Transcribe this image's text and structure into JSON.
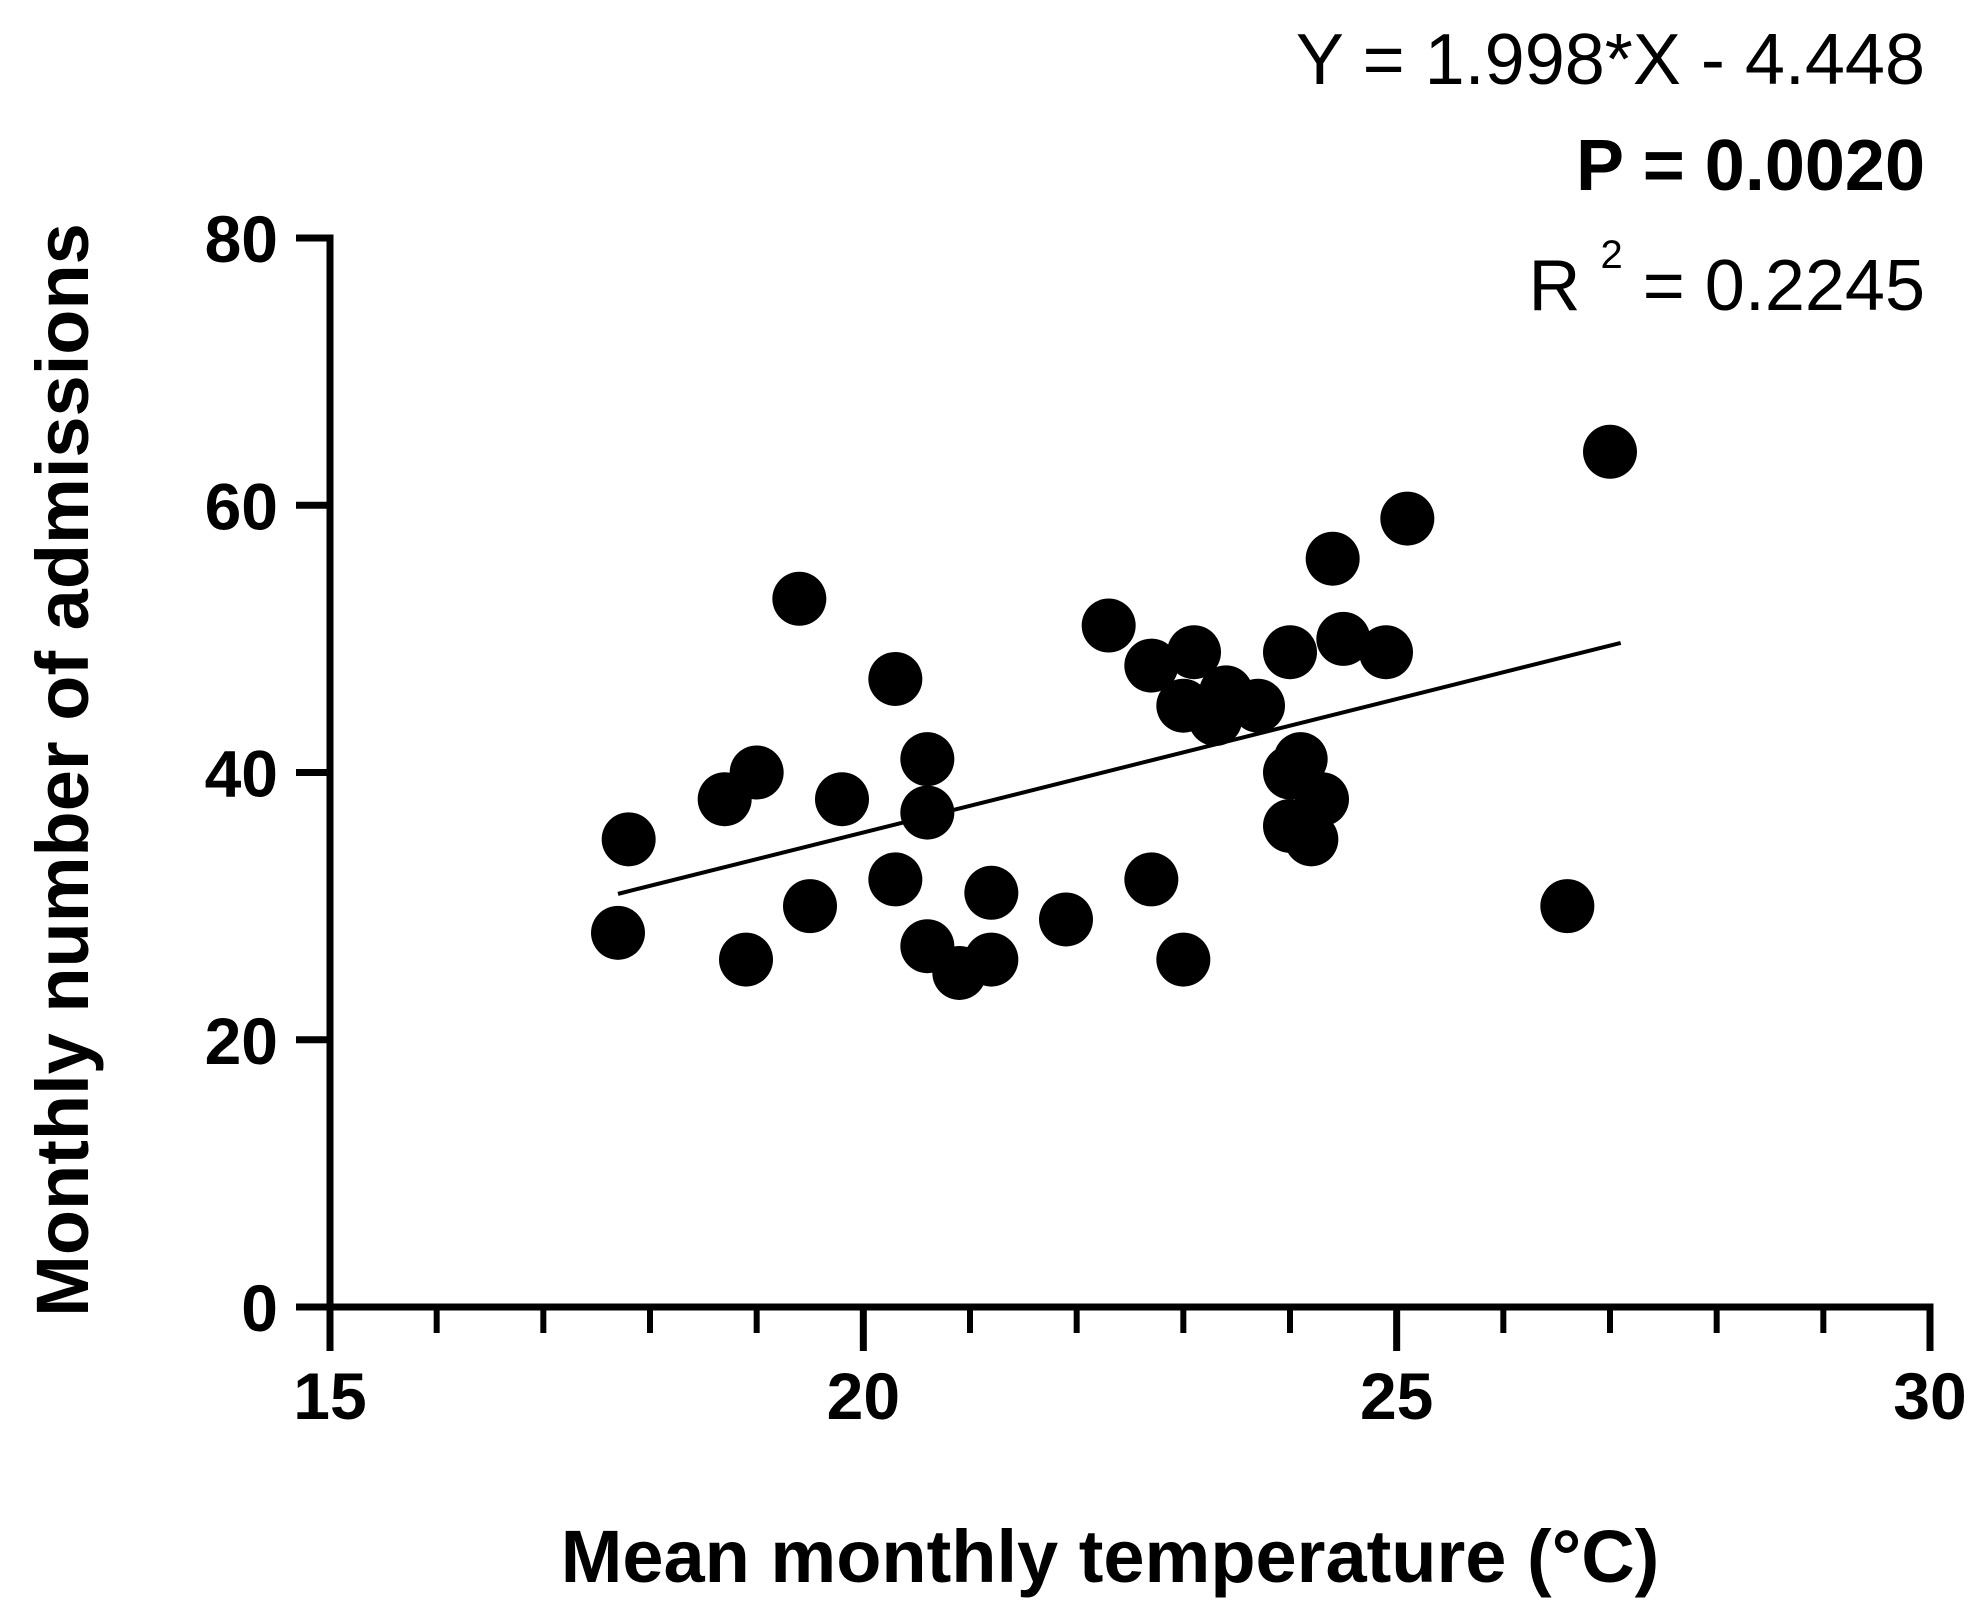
{
  "colors": {
    "background": "#ffffff",
    "ink": "#000000"
  },
  "chart_data": {
    "type": "scatter",
    "title": "",
    "xlabel": "Mean monthly temperature (°C)",
    "ylabel": "Monthly number of admissions",
    "xlim": [
      15,
      30
    ],
    "ylim": [
      0,
      80
    ],
    "x_major_ticks": [
      15,
      20,
      25,
      30
    ],
    "x_major_tick_labels": [
      "15",
      "20",
      "25",
      "30"
    ],
    "x_minor_step": 1,
    "y_major_ticks": [
      0,
      20,
      40,
      60,
      80
    ],
    "y_major_tick_labels": [
      "0",
      "20",
      "40",
      "60",
      "80"
    ],
    "grid": false,
    "series": [
      {
        "name": "Admissions",
        "marker": "filled-circle",
        "points": [
          [
            17.7,
            28
          ],
          [
            17.8,
            35
          ],
          [
            18.7,
            38
          ],
          [
            18.9,
            26
          ],
          [
            19.0,
            40
          ],
          [
            19.4,
            53
          ],
          [
            19.5,
            30
          ],
          [
            19.8,
            38
          ],
          [
            20.3,
            47
          ],
          [
            20.3,
            32
          ],
          [
            20.6,
            41
          ],
          [
            20.6,
            37
          ],
          [
            20.6,
            27
          ],
          [
            20.9,
            25
          ],
          [
            21.2,
            26
          ],
          [
            21.2,
            31
          ],
          [
            21.9,
            29
          ],
          [
            22.3,
            51
          ],
          [
            22.7,
            48
          ],
          [
            22.7,
            32
          ],
          [
            23.0,
            26
          ],
          [
            23.0,
            45
          ],
          [
            23.1,
            49
          ],
          [
            23.3,
            44
          ],
          [
            23.4,
            46
          ],
          [
            23.7,
            45
          ],
          [
            24.0,
            40
          ],
          [
            24.0,
            36
          ],
          [
            24.0,
            49
          ],
          [
            24.1,
            41
          ],
          [
            24.2,
            35
          ],
          [
            24.3,
            38
          ],
          [
            24.4,
            56
          ],
          [
            24.5,
            50
          ],
          [
            24.9,
            49
          ],
          [
            25.1,
            59
          ],
          [
            26.6,
            30
          ],
          [
            27.0,
            64
          ]
        ]
      }
    ],
    "regression": {
      "slope": 1.998,
      "intercept": -4.448,
      "x_range": [
        17.7,
        27.1
      ]
    },
    "annotations": {
      "equation": "Y = 1.998*X - 4.448",
      "p_value": "P = 0.0020",
      "r_squared_prefix": "R",
      "r_squared_superscript": "2",
      "r_squared_value": " = 0.2245"
    }
  }
}
